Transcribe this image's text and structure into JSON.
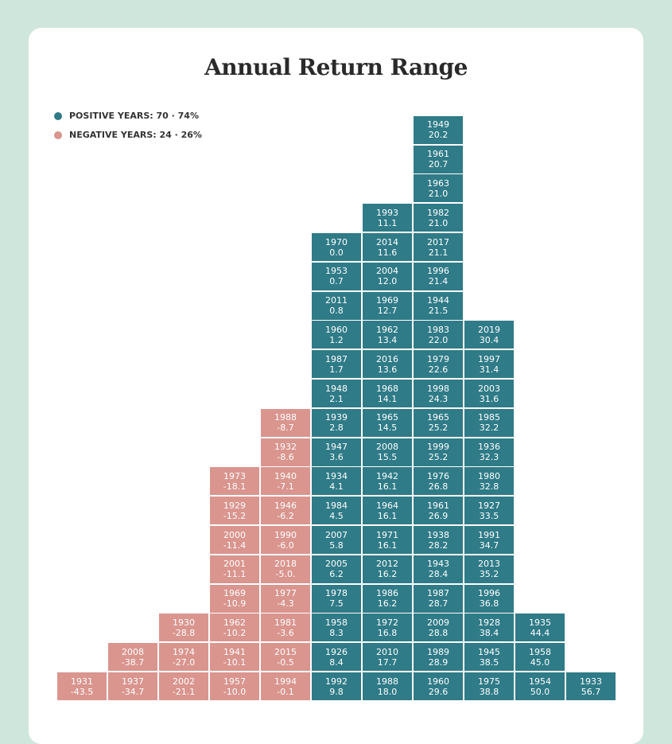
{
  "title": "Annual Return Range",
  "legend": [
    {
      "label": "POSITIVE YEARS: 70 · 74%",
      "color": "#2f7b87"
    },
    {
      "label": "NEGATIVE YEARS: 24 · 26%",
      "color": "#d9958e"
    }
  ],
  "columns": [
    {
      "color": "#d9958e",
      "tiles": [
        {
          "year": "1931",
          "value": "-43.5"
        }
      ]
    },
    {
      "color": "#d9958e",
      "tiles": [
        {
          "year": "1937",
          "value": "-34.7"
        },
        {
          "year": "2008",
          "value": "-38.7"
        }
      ]
    },
    {
      "color": "#d9958e",
      "tiles": [
        {
          "year": "2002",
          "value": "-21.1"
        },
        {
          "year": "1974",
          "value": "-27.0"
        },
        {
          "year": "1930",
          "value": "-28.8"
        }
      ]
    },
    {
      "color": "#d9958e",
      "tiles": [
        {
          "year": "1957",
          "value": "-10.0"
        },
        {
          "year": "1941",
          "value": "-10.1"
        },
        {
          "year": "1962",
          "value": "-10.2"
        },
        {
          "year": "1969",
          "value": "-10.9"
        },
        {
          "year": "2001",
          "value": "-11.1"
        },
        {
          "year": "2000",
          "value": "-11.4"
        },
        {
          "year": "1929",
          "value": "-15.2"
        },
        {
          "year": "1973",
          "value": "-18.1"
        }
      ]
    },
    {
      "color": "#d9958e",
      "tiles": [
        {
          "year": "1994",
          "value": "-0.1"
        },
        {
          "year": "2015",
          "value": "-0.5"
        },
        {
          "year": "1981",
          "value": "-3.6"
        },
        {
          "year": "1977",
          "value": "-4.3"
        },
        {
          "year": "2018",
          "value": "-5.0."
        },
        {
          "year": "1990",
          "value": "-6.0"
        },
        {
          "year": "1946",
          "value": "-6.2"
        },
        {
          "year": "1940",
          "value": "-7.1"
        },
        {
          "year": "1932",
          "value": "-8.6"
        },
        {
          "year": "1988",
          "value": "-8.7"
        }
      ]
    },
    {
      "color": "#2f7b87",
      "tiles": [
        {
          "year": "1992",
          "value": "9.8"
        },
        {
          "year": "1926",
          "value": "8.4"
        },
        {
          "year": "1958",
          "value": "8.3"
        },
        {
          "year": "1978",
          "value": "7.5"
        },
        {
          "year": "2005",
          "value": "6.2"
        },
        {
          "year": "2007",
          "value": "5.8"
        },
        {
          "year": "1984",
          "value": "4.5"
        },
        {
          "year": "1934",
          "value": "4.1"
        },
        {
          "year": "1947",
          "value": "3.6"
        },
        {
          "year": "1939",
          "value": "2.8"
        },
        {
          "year": "1948",
          "value": "2.1"
        },
        {
          "year": "1987",
          "value": "1.7"
        },
        {
          "year": "1960",
          "value": "1.2"
        },
        {
          "year": "2011",
          "value": "0.8"
        },
        {
          "year": "1953",
          "value": "0.7"
        },
        {
          "year": "1970",
          "value": "0.0"
        }
      ]
    },
    {
      "color": "#2f7b87",
      "tiles": [
        {
          "year": "1988",
          "value": "18.0"
        },
        {
          "year": "2010",
          "value": "17.7"
        },
        {
          "year": "1972",
          "value": "16.8"
        },
        {
          "year": "1986",
          "value": "16.2"
        },
        {
          "year": "2012",
          "value": "16.2"
        },
        {
          "year": "1971",
          "value": "16.1"
        },
        {
          "year": "1964",
          "value": "16.1"
        },
        {
          "year": "1942",
          "value": "16.1"
        },
        {
          "year": "2008",
          "value": "15.5"
        },
        {
          "year": "1965",
          "value": "14.5"
        },
        {
          "year": "1968",
          "value": "14.1"
        },
        {
          "year": "2016",
          "value": "13.6"
        },
        {
          "year": "1962",
          "value": "13.4"
        },
        {
          "year": "1969",
          "value": "12.7"
        },
        {
          "year": "2004",
          "value": "12.0"
        },
        {
          "year": "2014",
          "value": "11.6"
        },
        {
          "year": "1993",
          "value": "11.1"
        }
      ]
    },
    {
      "color": "#2f7b87",
      "tiles": [
        {
          "year": "1960",
          "value": "29.6"
        },
        {
          "year": "1989",
          "value": "28.9"
        },
        {
          "year": "2009",
          "value": "28.8"
        },
        {
          "year": "1987",
          "value": "28.7"
        },
        {
          "year": "1943",
          "value": "28.4"
        },
        {
          "year": "1938",
          "value": "28.2"
        },
        {
          "year": "1961",
          "value": "26.9"
        },
        {
          "year": "1976",
          "value": "26.8"
        },
        {
          "year": "1999",
          "value": "25.2"
        },
        {
          "year": "1965",
          "value": "25.2"
        },
        {
          "year": "1998",
          "value": "24.3"
        },
        {
          "year": "1979",
          "value": "22.6"
        },
        {
          "year": "1983",
          "value": "22.0"
        },
        {
          "year": "1944",
          "value": "21.5"
        },
        {
          "year": "1996",
          "value": "21.4"
        },
        {
          "year": "2017",
          "value": "21.1"
        },
        {
          "year": "1982",
          "value": "21.0"
        },
        {
          "year": "1963",
          "value": "21.0"
        },
        {
          "year": "1961",
          "value": "20.7"
        },
        {
          "year": "1949",
          "value": "20.2"
        }
      ]
    },
    {
      "color": "#2f7b87",
      "tiles": [
        {
          "year": "1975",
          "value": "38.8"
        },
        {
          "year": "1945",
          "value": "38.5"
        },
        {
          "year": "1928",
          "value": "38.4"
        },
        {
          "year": "1996",
          "value": "36.8"
        },
        {
          "year": "2013",
          "value": "35.2"
        },
        {
          "year": "1991",
          "value": "34.7"
        },
        {
          "year": "1927",
          "value": "33.5"
        },
        {
          "year": "1980",
          "value": "32.8"
        },
        {
          "year": "1936",
          "value": "32.3"
        },
        {
          "year": "1985",
          "value": "32.2"
        },
        {
          "year": "2003",
          "value": "31.6"
        },
        {
          "year": "1997",
          "value": "31.4"
        },
        {
          "year": "2019",
          "value": "30.4"
        }
      ]
    },
    {
      "color": "#2f7b87",
      "tiles": [
        {
          "year": "1954",
          "value": "50.0"
        },
        {
          "year": "1958",
          "value": "45.0"
        },
        {
          "year": "1935",
          "value": "44.4"
        }
      ]
    },
    {
      "color": "#2f7b87",
      "tiles": [
        {
          "year": "1933",
          "value": "56.7"
        }
      ]
    }
  ]
}
